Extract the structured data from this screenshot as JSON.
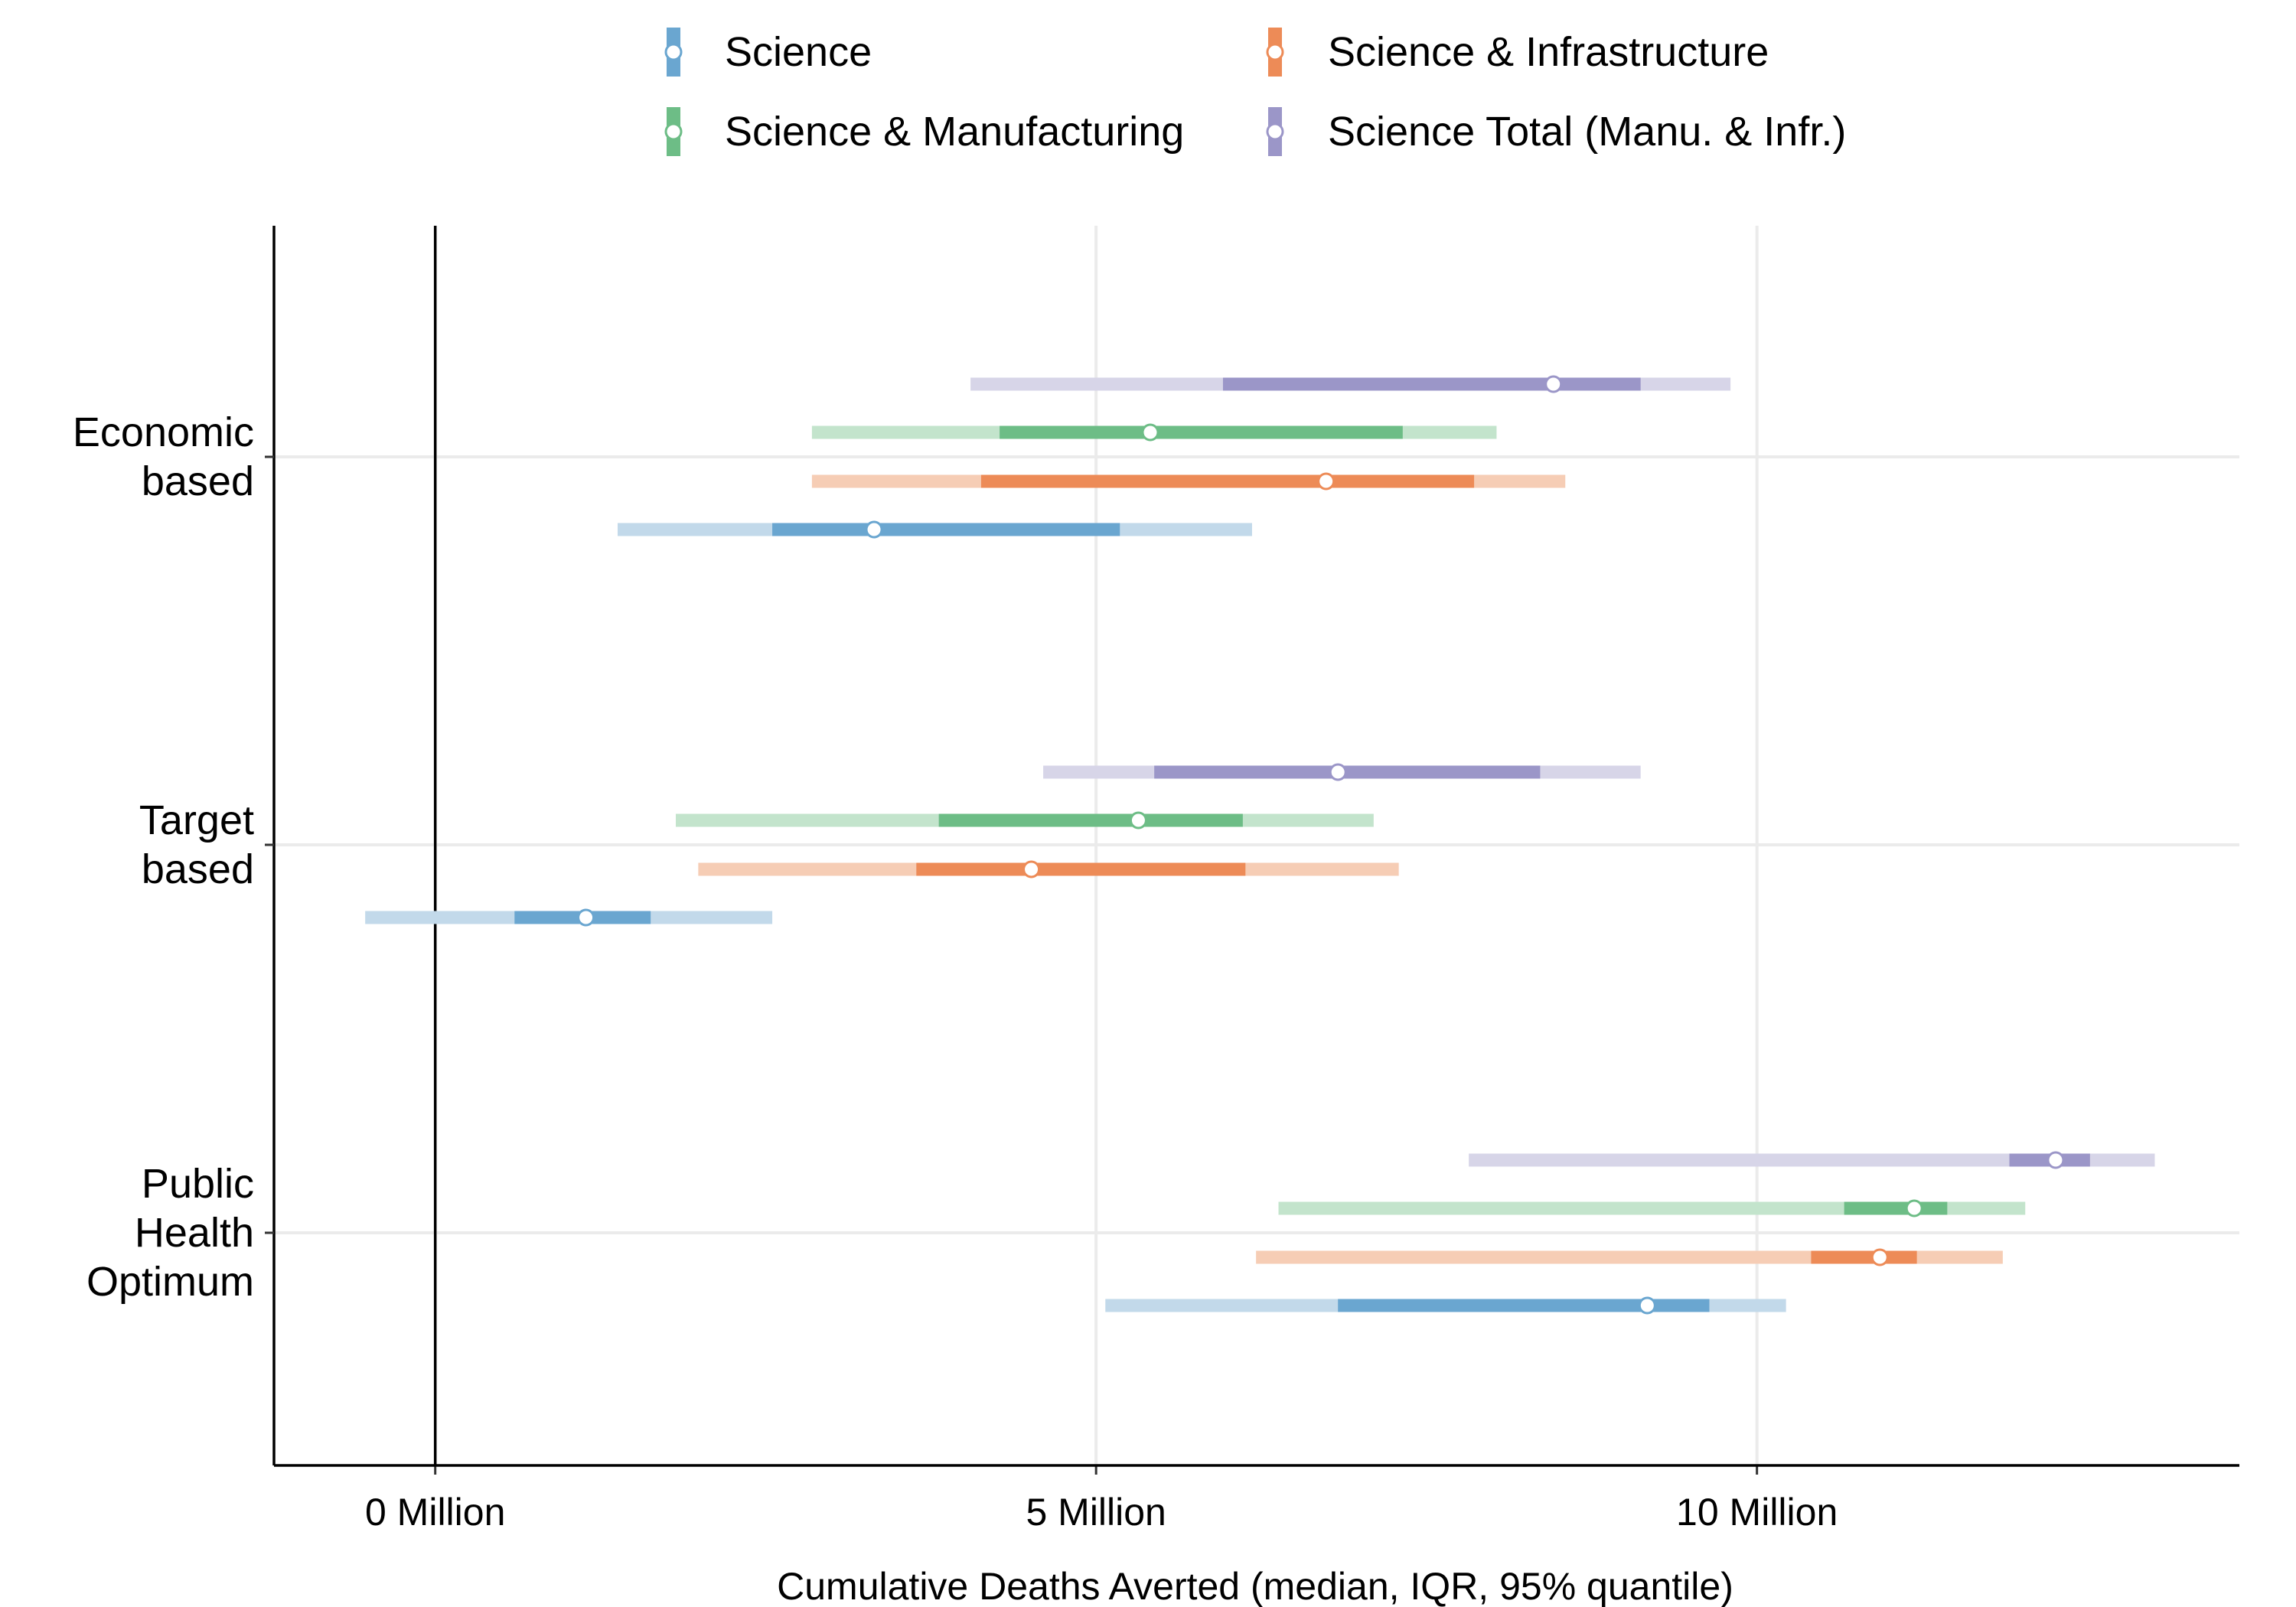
{
  "chart_data": {
    "type": "interval",
    "title": "",
    "xlabel": "Cumulative Deaths Averted (median, IQR, 95% quantile)",
    "ylabel": "",
    "xlim": [
      -1.22,
      13.65
    ],
    "xticks": [
      {
        "value": 0,
        "label": "0 Million"
      },
      {
        "value": 5,
        "label": "5 Million"
      },
      {
        "value": 10,
        "label": "10 Million"
      }
    ],
    "unit": "Million",
    "grid": true,
    "zero_line": true,
    "legend_position": "top",
    "categories": [
      {
        "id": "economic",
        "lines": [
          "Economic",
          "based"
        ]
      },
      {
        "id": "target",
        "lines": [
          "Target",
          "based"
        ]
      },
      {
        "id": "public",
        "lines": [
          "Public",
          "Health",
          "Optimum"
        ]
      }
    ],
    "series": [
      {
        "name": "Science",
        "color": "#6aa6d0",
        "light_color": "#c2d9ea",
        "points": {
          "economic": {
            "q025": 1.38,
            "q25": 2.55,
            "median": 3.32,
            "q75": 5.18,
            "q975": 6.18
          },
          "target": {
            "q025": -0.53,
            "q25": 0.6,
            "median": 1.14,
            "q75": 1.63,
            "q975": 2.55
          },
          "public": {
            "q025": 5.07,
            "q25": 6.83,
            "median": 9.17,
            "q75": 9.64,
            "q975": 10.22
          }
        }
      },
      {
        "name": "Science & Infrastructure",
        "color": "#ed8b57",
        "light_color": "#f6cdb5",
        "points": {
          "economic": {
            "q025": 2.85,
            "q25": 4.13,
            "median": 6.74,
            "q75": 7.86,
            "q975": 8.55
          },
          "target": {
            "q025": 1.99,
            "q25": 3.64,
            "median": 4.51,
            "q75": 6.13,
            "q975": 7.29
          },
          "public": {
            "q025": 6.21,
            "q25": 10.41,
            "median": 10.93,
            "q75": 11.21,
            "q975": 11.86
          }
        }
      },
      {
        "name": "Science & Manufacturing",
        "color": "#6dbd86",
        "light_color": "#c3e4cc",
        "points": {
          "economic": {
            "q025": 2.85,
            "q25": 4.27,
            "median": 5.41,
            "q75": 7.32,
            "q975": 8.03
          },
          "target": {
            "q025": 1.82,
            "q25": 3.81,
            "median": 5.32,
            "q75": 6.11,
            "q975": 7.1
          },
          "public": {
            "q025": 6.38,
            "q25": 10.66,
            "median": 11.19,
            "q75": 11.44,
            "q975": 12.03
          }
        }
      },
      {
        "name": "Science Total (Manu. & Infr.)",
        "color": "#9b96c8",
        "light_color": "#d7d5e8",
        "points": {
          "economic": {
            "q025": 4.05,
            "q25": 5.96,
            "median": 8.46,
            "q75": 9.12,
            "q975": 9.8
          },
          "target": {
            "q025": 4.6,
            "q25": 5.44,
            "median": 6.83,
            "q75": 8.36,
            "q975": 9.12
          },
          "public": {
            "q025": 7.82,
            "q25": 11.91,
            "median": 12.26,
            "q75": 12.52,
            "q975": 13.01
          }
        }
      }
    ],
    "legend_order": [
      "Science",
      "Science & Infrastructure",
      "Science & Manufacturing",
      "Science Total (Manu. & Infr.)"
    ],
    "stack_order_bottom_to_top": [
      "Science",
      "Science & Infrastructure",
      "Science & Manufacturing",
      "Science Total (Manu. & Infr.)"
    ]
  }
}
